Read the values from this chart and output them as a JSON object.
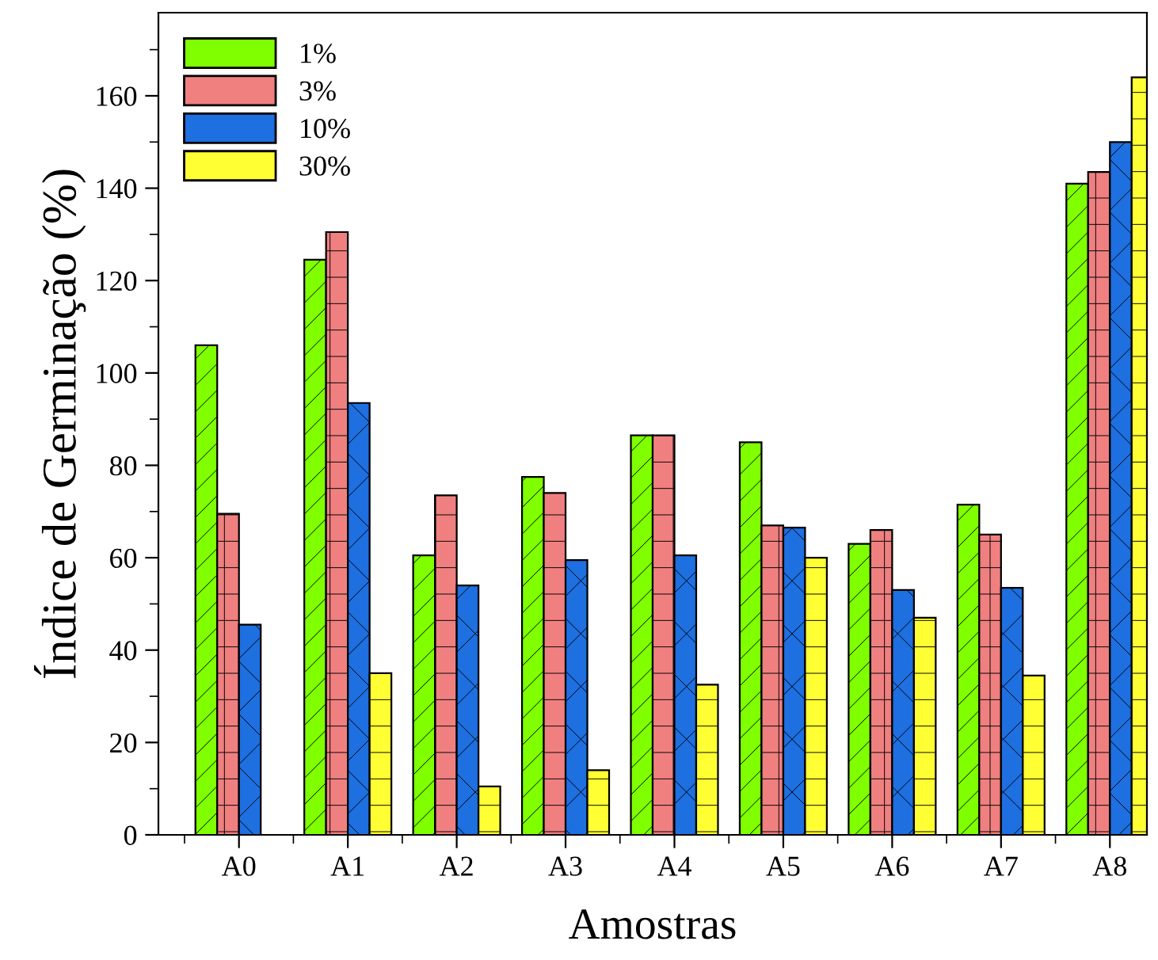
{
  "chart_data": {
    "type": "bar",
    "xlabel": "Amostras",
    "ylabel": "Índice de Germinação (%)",
    "categories": [
      "A0",
      "A1",
      "A2",
      "A3",
      "A4",
      "A5",
      "A6",
      "A7",
      "A8"
    ],
    "series": [
      {
        "name": "1%",
        "color": "#7fff00",
        "values": [
          106,
          124.5,
          60.5,
          77.5,
          86.5,
          85,
          63,
          71.5,
          141
        ]
      },
      {
        "name": "3%",
        "color": "#f08080",
        "values": [
          69.5,
          130.5,
          73.5,
          74,
          86.5,
          67,
          66,
          65,
          143.5
        ]
      },
      {
        "name": "10%",
        "color": "#1e6fe0",
        "values": [
          45.5,
          93.5,
          54,
          59.5,
          60.5,
          66.5,
          53,
          53.5,
          150
        ]
      },
      {
        "name": "30%",
        "color": "#ffff33",
        "values": [
          null,
          35,
          10.5,
          14,
          32.5,
          60,
          47,
          34.5,
          164
        ]
      }
    ],
    "ylim": [
      0,
      178
    ],
    "yticks": [
      0,
      20,
      40,
      60,
      80,
      100,
      120,
      140,
      160
    ],
    "grid": false,
    "legend": "top left"
  }
}
